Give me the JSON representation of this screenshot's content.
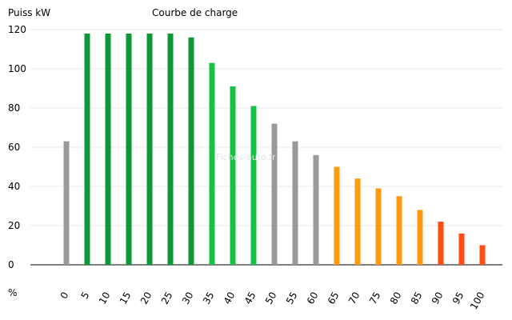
{
  "chart_data": {
    "type": "bar",
    "title": "Courbe de charge",
    "ylabel": "Puiss kW",
    "xlabel": "%",
    "watermark": "Fiches-auto.fr",
    "ylim": [
      0,
      120
    ],
    "yticks": [
      0,
      20,
      40,
      60,
      80,
      100,
      120
    ],
    "grid": true,
    "categories": [
      "0",
      "5",
      "10",
      "15",
      "20",
      "25",
      "30",
      "35",
      "40",
      "45",
      "50",
      "55",
      "60",
      "65",
      "70",
      "75",
      "80",
      "85",
      "90",
      "95",
      "100"
    ],
    "values": [
      63,
      118,
      118,
      118,
      118,
      118,
      116,
      103,
      91,
      81,
      72,
      63,
      56,
      50,
      44,
      39,
      35,
      28,
      22,
      16,
      10
    ],
    "colors": [
      "#999999",
      "#0d9837",
      "#0d9837",
      "#0d9837",
      "#0d9837",
      "#0d9837",
      "#0d9837",
      "#16c144",
      "#16c144",
      "#16c144",
      "#999999",
      "#999999",
      "#999999",
      "#ff9a0f",
      "#ff9a0f",
      "#ff9a0f",
      "#ff9a0f",
      "#ff9a0f",
      "#ff4d13",
      "#ff4d13",
      "#ff4d13"
    ]
  }
}
